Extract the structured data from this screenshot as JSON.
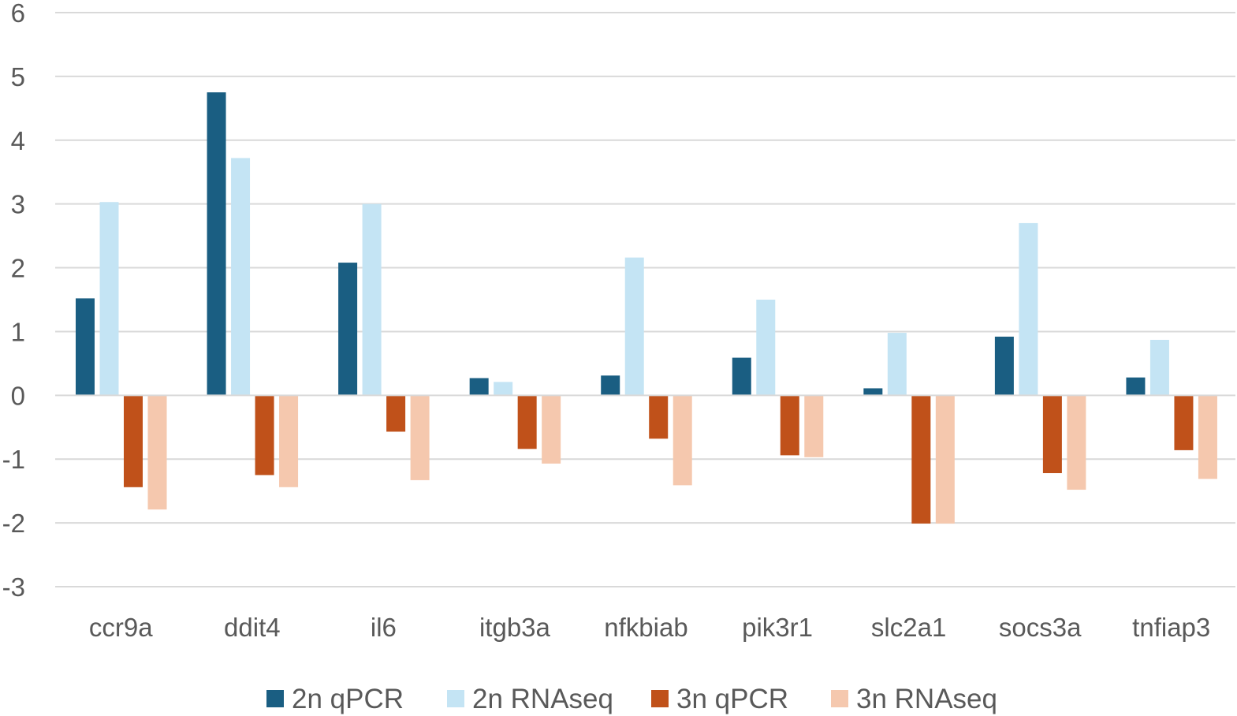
{
  "chart_data": {
    "type": "bar",
    "title": "",
    "xlabel": "",
    "ylabel": "",
    "ylim": [
      -3,
      6
    ],
    "yticks": [
      6,
      5,
      4,
      3,
      2,
      1,
      0,
      -1,
      -2,
      -3
    ],
    "grid": true,
    "legend": "bottom",
    "categories": [
      "ccr9a",
      "ddit4",
      "il6",
      "itgb3a",
      "nfkbiab",
      "pik3r1",
      "slc2a1",
      "socs3a",
      "tnfiap3"
    ],
    "series": [
      {
        "name": "2n qPCR",
        "color": "#1a5e82",
        "values": [
          1.52,
          4.75,
          2.08,
          0.27,
          0.31,
          0.59,
          0.11,
          0.92,
          0.28
        ]
      },
      {
        "name": "2n RNAseq",
        "color": "#c4e4f4",
        "values": [
          3.03,
          3.72,
          3.0,
          0.21,
          2.16,
          1.5,
          0.98,
          2.7,
          0.87
        ]
      },
      {
        "name": "3n qPCR",
        "color": "#c0511a",
        "values": [
          -1.44,
          -1.25,
          -0.57,
          -0.84,
          -0.68,
          -0.94,
          -2.01,
          -1.22,
          -0.86
        ]
      },
      {
        "name": "3n RNAseq",
        "color": "#f5c8ae",
        "values": [
          -1.79,
          -1.44,
          -1.33,
          -1.07,
          -1.41,
          -0.97,
          -2.01,
          -1.48,
          -1.31
        ]
      }
    ]
  }
}
